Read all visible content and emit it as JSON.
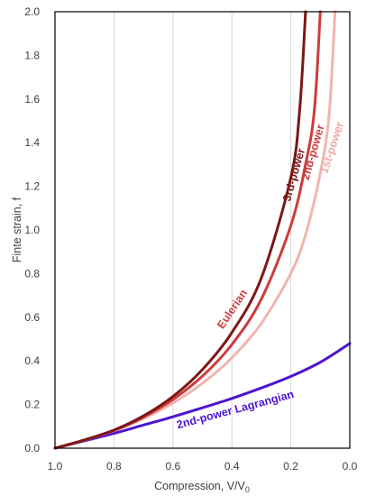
{
  "chart_data": {
    "type": "line",
    "xlabel": "Compression, V/V",
    "xlabel_sub": "0",
    "ylabel": "Finte strain, f",
    "xlim": [
      1.0,
      0.0
    ],
    "ylim": [
      0.0,
      2.0
    ],
    "x_reversed": true,
    "x_ticks": [
      "1.0",
      "0.8",
      "0.6",
      "0.4",
      "0.2",
      "0.0"
    ],
    "y_ticks": [
      "0.0",
      "0.2",
      "0.4",
      "0.6",
      "0.8",
      "1.0",
      "1.2",
      "1.4",
      "1.6",
      "1.8",
      "2.0"
    ],
    "grid": "vertical",
    "series": [
      {
        "name": "2nd-power Lagrangian",
        "color": "#4B14D2",
        "x": [
          1.0,
          0.9,
          0.8,
          0.7,
          0.6,
          0.5,
          0.4,
          0.3,
          0.2,
          0.1,
          0.0
        ],
        "y": [
          0.0,
          0.034,
          0.068,
          0.106,
          0.144,
          0.185,
          0.228,
          0.276,
          0.329,
          0.394,
          0.48
        ]
      },
      {
        "name": "1st-power",
        "color": "#F0B4B0",
        "x": [
          1.0,
          0.9,
          0.8,
          0.7,
          0.6,
          0.5,
          0.4,
          0.3,
          0.2,
          0.15,
          0.1,
          0.07,
          0.05
        ],
        "y": [
          0.0,
          0.037,
          0.08,
          0.136,
          0.207,
          0.297,
          0.414,
          0.572,
          0.801,
          0.978,
          1.26,
          1.53,
          2.0
        ]
      },
      {
        "name": "2nd-power",
        "color": "#CD3C3C",
        "x": [
          1.0,
          0.9,
          0.8,
          0.7,
          0.6,
          0.5,
          0.4,
          0.3,
          0.2,
          0.15,
          0.12,
          0.1
        ],
        "y": [
          0.0,
          0.037,
          0.081,
          0.142,
          0.223,
          0.33,
          0.475,
          0.683,
          1.02,
          1.3,
          1.55,
          2.0
        ]
      },
      {
        "name": "3rd-power",
        "color": "#7B1717",
        "x": [
          1.0,
          0.9,
          0.8,
          0.7,
          0.6,
          0.5,
          0.4,
          0.3,
          0.2,
          0.17,
          0.15
        ],
        "y": [
          0.0,
          0.038,
          0.083,
          0.148,
          0.237,
          0.36,
          0.53,
          0.78,
          1.24,
          1.55,
          2.0
        ]
      }
    ],
    "annotations": [
      "3rd-power",
      "2nd-power",
      "1st-power",
      "Eulerian",
      "2nd-power Lagrangian"
    ]
  }
}
